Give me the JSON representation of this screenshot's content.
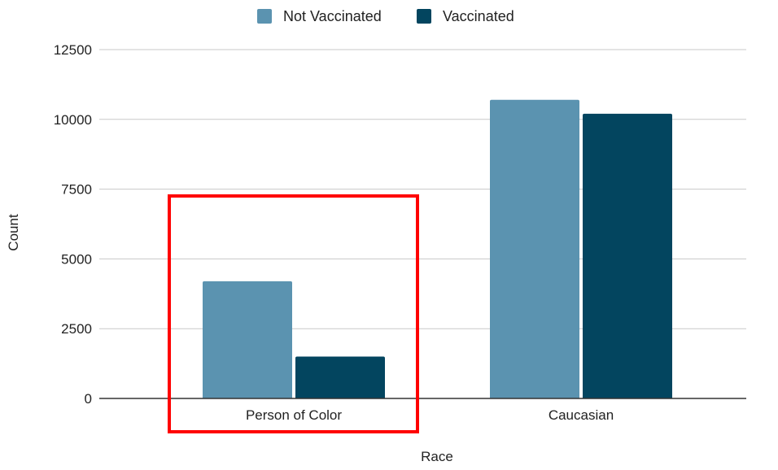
{
  "chart_data": {
    "type": "bar",
    "categories": [
      "Person of Color",
      "Caucasian"
    ],
    "series": [
      {
        "name": "Not Vaccinated",
        "values": [
          4200,
          10700
        ],
        "color": "#5b93b0"
      },
      {
        "name": "Vaccinated",
        "values": [
          1500,
          10200
        ],
        "color": "#03455f"
      }
    ],
    "xlabel": "Race",
    "ylabel": "Count",
    "ylim": [
      0,
      12500
    ],
    "yticks": [
      0,
      2500,
      5000,
      7500,
      10000,
      12500
    ],
    "grid": true,
    "legend_position": "top",
    "annotation": {
      "type": "rectangle",
      "target_category": "Person of Color",
      "color": "#ff0000"
    }
  }
}
